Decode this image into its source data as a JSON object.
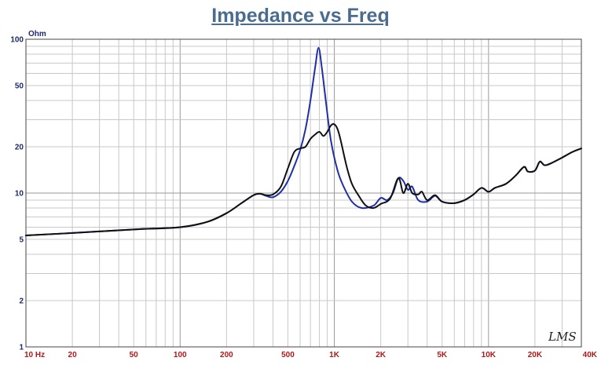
{
  "chart_data": {
    "type": "line",
    "title": "Impedance vs Freq",
    "ylabel": "Ohm",
    "xlabel": "",
    "x_scale": "log",
    "y_scale": "log",
    "xlim": [
      10,
      40000
    ],
    "ylim": [
      1,
      100
    ],
    "grid": true,
    "x_ticks": [
      {
        "v": 10,
        "label": "10 Hz"
      },
      {
        "v": 20,
        "label": "20"
      },
      {
        "v": 50,
        "label": "50"
      },
      {
        "v": 100,
        "label": "100"
      },
      {
        "v": 200,
        "label": "200"
      },
      {
        "v": 500,
        "label": "500"
      },
      {
        "v": 1000,
        "label": "1K"
      },
      {
        "v": 2000,
        "label": "2K"
      },
      {
        "v": 5000,
        "label": "5K"
      },
      {
        "v": 10000,
        "label": "10K"
      },
      {
        "v": 20000,
        "label": "20K"
      },
      {
        "v": 40000,
        "label": "40K"
      }
    ],
    "y_ticks": [
      {
        "v": 1,
        "label": "1"
      },
      {
        "v": 2,
        "label": "2"
      },
      {
        "v": 5,
        "label": "5"
      },
      {
        "v": 10,
        "label": "10"
      },
      {
        "v": 20,
        "label": "20"
      },
      {
        "v": 50,
        "label": "50"
      },
      {
        "v": 100,
        "label": "100"
      }
    ],
    "watermark": "LMS",
    "series": [
      {
        "color": "#1f2fa8",
        "points": [
          [
            10,
            5.3
          ],
          [
            20,
            5.5
          ],
          [
            50,
            5.8
          ],
          [
            100,
            6.0
          ],
          [
            150,
            6.5
          ],
          [
            200,
            7.4
          ],
          [
            250,
            8.6
          ],
          [
            300,
            9.7
          ],
          [
            330,
            9.9
          ],
          [
            360,
            9.6
          ],
          [
            400,
            9.4
          ],
          [
            450,
            10.2
          ],
          [
            500,
            12.0
          ],
          [
            550,
            15.0
          ],
          [
            600,
            19.0
          ],
          [
            650,
            26.0
          ],
          [
            700,
            40.0
          ],
          [
            750,
            65.0
          ],
          [
            790,
            88.0
          ],
          [
            830,
            65.0
          ],
          [
            880,
            40.0
          ],
          [
            950,
            22.0
          ],
          [
            1050,
            14.0
          ],
          [
            1150,
            11.0
          ],
          [
            1300,
            8.8
          ],
          [
            1500,
            8.0
          ],
          [
            1800,
            8.3
          ],
          [
            2000,
            9.3
          ],
          [
            2200,
            9.0
          ],
          [
            2400,
            10.0
          ],
          [
            2600,
            12.5
          ],
          [
            2800,
            12.0
          ],
          [
            3000,
            10.5
          ],
          [
            3200,
            11.0
          ],
          [
            3500,
            9.0
          ],
          [
            4000,
            8.8
          ],
          [
            4500,
            9.6
          ],
          [
            5000,
            8.8
          ],
          [
            6000,
            8.6
          ],
          [
            7000,
            9.0
          ],
          [
            8000,
            9.8
          ],
          [
            9000,
            10.8
          ],
          [
            10000,
            10.2
          ],
          [
            11000,
            10.8
          ],
          [
            13000,
            11.5
          ],
          [
            15000,
            13.0
          ],
          [
            17000,
            14.8
          ],
          [
            18000,
            13.8
          ],
          [
            20000,
            14.0
          ],
          [
            21500,
            16.0
          ],
          [
            23000,
            15.2
          ],
          [
            25000,
            15.5
          ],
          [
            30000,
            17.0
          ],
          [
            35000,
            18.5
          ],
          [
            40000,
            19.5
          ]
        ]
      },
      {
        "color": "#111111",
        "points": [
          [
            10,
            5.3
          ],
          [
            20,
            5.5
          ],
          [
            50,
            5.8
          ],
          [
            100,
            6.0
          ],
          [
            150,
            6.5
          ],
          [
            200,
            7.4
          ],
          [
            250,
            8.6
          ],
          [
            300,
            9.7
          ],
          [
            330,
            9.9
          ],
          [
            360,
            9.7
          ],
          [
            400,
            9.8
          ],
          [
            450,
            11.0
          ],
          [
            500,
            14.5
          ],
          [
            550,
            18.5
          ],
          [
            600,
            19.5
          ],
          [
            650,
            20.0
          ],
          [
            700,
            22.5
          ],
          [
            750,
            24.0
          ],
          [
            800,
            25.0
          ],
          [
            850,
            23.5
          ],
          [
            900,
            25.0
          ],
          [
            950,
            27.5
          ],
          [
            1000,
            28.0
          ],
          [
            1050,
            26.0
          ],
          [
            1100,
            22.0
          ],
          [
            1200,
            15.0
          ],
          [
            1300,
            11.5
          ],
          [
            1450,
            9.5
          ],
          [
            1600,
            8.3
          ],
          [
            1800,
            8.0
          ],
          [
            2000,
            8.5
          ],
          [
            2300,
            9.2
          ],
          [
            2600,
            12.5
          ],
          [
            2800,
            10.0
          ],
          [
            3000,
            11.5
          ],
          [
            3200,
            10.0
          ],
          [
            3500,
            9.8
          ],
          [
            3700,
            10.2
          ],
          [
            4000,
            9.0
          ],
          [
            4500,
            9.7
          ],
          [
            5000,
            8.8
          ],
          [
            6000,
            8.6
          ],
          [
            7000,
            9.0
          ],
          [
            8000,
            9.8
          ],
          [
            9000,
            10.8
          ],
          [
            10000,
            10.2
          ],
          [
            11000,
            10.8
          ],
          [
            13000,
            11.5
          ],
          [
            15000,
            13.0
          ],
          [
            17000,
            14.8
          ],
          [
            18000,
            13.8
          ],
          [
            20000,
            14.0
          ],
          [
            21500,
            16.0
          ],
          [
            23000,
            15.2
          ],
          [
            25000,
            15.5
          ],
          [
            30000,
            17.0
          ],
          [
            35000,
            18.5
          ],
          [
            40000,
            19.5
          ]
        ]
      }
    ]
  }
}
